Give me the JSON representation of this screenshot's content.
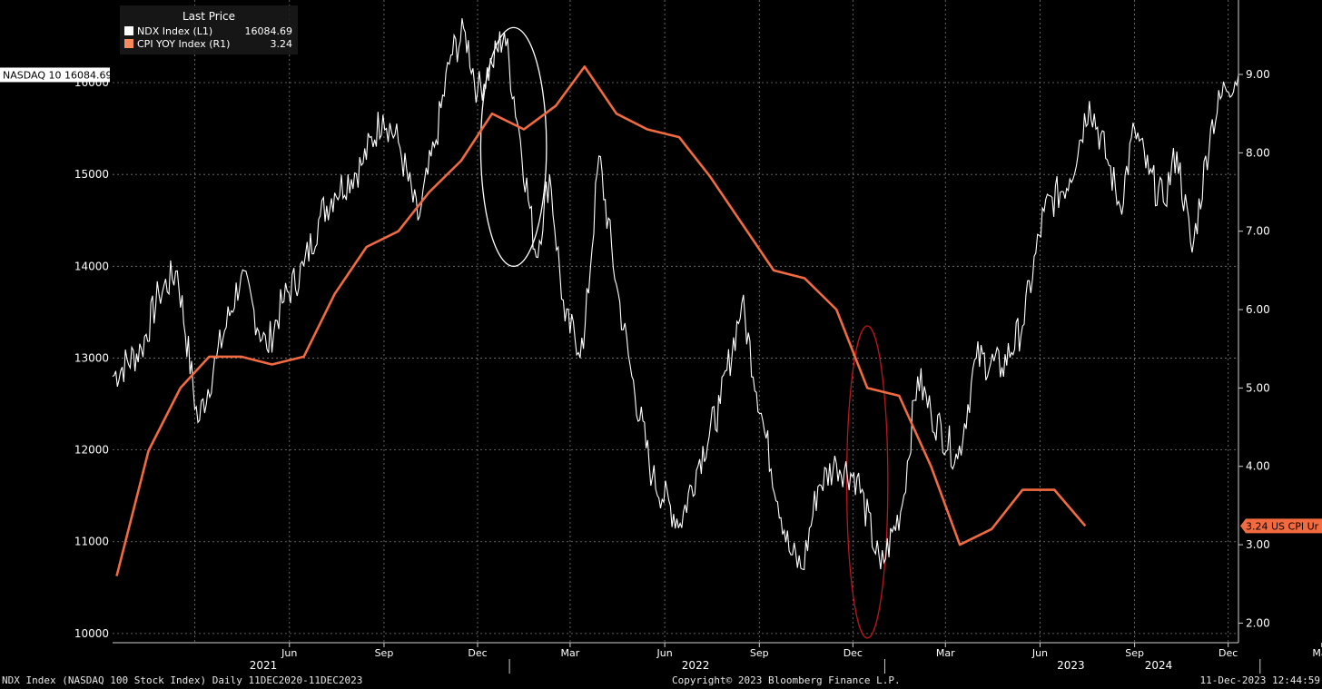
{
  "footer": {
    "left": "NDX Index (NASDAQ 100 Stock Index)  Daily 11DEC2020-11DEC2023",
    "center": "Copyright© 2023 Bloomberg Finance L.P.",
    "right": "11-Dec-2023 12:44:59"
  },
  "legend": {
    "title": "Last Price",
    "items": [
      {
        "label": "NDX Index  (L1)",
        "value": "16084.69",
        "color": "#ffffff"
      },
      {
        "label": "CPI YOY Index  (R1)",
        "value": "3.24",
        "color": "#ff8a5b"
      }
    ]
  },
  "tags": {
    "left": "NASDAQ 10 16084.69",
    "right": "3.24 US CPI Ur"
  },
  "colors": {
    "background": "#000000",
    "ndx": "#ffffff",
    "cpi": "#f26a3f",
    "grid": "#7a7a7a",
    "annotation_white": "#ffffff",
    "annotation_red": "#c0141c"
  },
  "chart_data": {
    "type": "line",
    "x_range": [
      "2020-12-11",
      "2023-12-11"
    ],
    "x_tick_labels": [
      "Jun",
      "Sep",
      "Dec",
      "Mar",
      "Jun",
      "Sep",
      "Dec",
      "Mar",
      "Jun",
      "Sep",
      "Dec",
      "Mar"
    ],
    "year_labels": [
      "2021",
      "2022",
      "2023",
      "2024"
    ],
    "y_left": {
      "ticks": [
        "10000",
        "11000",
        "12000",
        "13000",
        "14000",
        "15000",
        "16000"
      ],
      "range": [
        9900,
        16900
      ]
    },
    "y_right": {
      "ticks": [
        "2.00",
        "3.00",
        "4.00",
        "5.00",
        "6.00",
        "7.00",
        "8.00",
        "9.00"
      ],
      "range": [
        1.75,
        9.95
      ]
    },
    "grid": true,
    "legend_position": "top-left",
    "series": [
      {
        "name": "NDX Index",
        "axis": "left",
        "points": [
          [
            "2020-12-11",
            12800
          ],
          [
            "2021-01-08",
            13100
          ],
          [
            "2021-01-25",
            13700
          ],
          [
            "2021-02-12",
            13950
          ],
          [
            "2021-03-04",
            12300
          ],
          [
            "2021-03-22",
            13000
          ],
          [
            "2021-04-15",
            13900
          ],
          [
            "2021-05-10",
            13100
          ],
          [
            "2021-05-25",
            13600
          ],
          [
            "2021-06-15",
            14000
          ],
          [
            "2021-07-01",
            14550
          ],
          [
            "2021-07-15",
            14800
          ],
          [
            "2021-08-10",
            15100
          ],
          [
            "2021-08-31",
            15650
          ],
          [
            "2021-09-15",
            15350
          ],
          [
            "2021-10-04",
            14500
          ],
          [
            "2021-10-20",
            15300
          ],
          [
            "2021-11-05",
            16300
          ],
          [
            "2021-11-19",
            16550
          ],
          [
            "2021-12-01",
            15900
          ],
          [
            "2021-12-15",
            16200
          ],
          [
            "2021-12-27",
            16550
          ],
          [
            "2022-01-10",
            15500
          ],
          [
            "2022-01-27",
            14100
          ],
          [
            "2022-02-09",
            15000
          ],
          [
            "2022-02-24",
            13400
          ],
          [
            "2022-03-14",
            13100
          ],
          [
            "2022-03-29",
            15200
          ],
          [
            "2022-04-15",
            13800
          ],
          [
            "2022-04-30",
            12800
          ],
          [
            "2022-05-20",
            11700
          ],
          [
            "2022-06-16",
            11200
          ],
          [
            "2022-07-05",
            11900
          ],
          [
            "2022-07-25",
            12500
          ],
          [
            "2022-08-15",
            13600
          ],
          [
            "2022-09-06",
            12200
          ],
          [
            "2022-09-30",
            10900
          ],
          [
            "2022-10-13",
            10700
          ],
          [
            "2022-10-28",
            11600
          ],
          [
            "2022-11-15",
            11850
          ],
          [
            "2022-12-05",
            11700
          ],
          [
            "2022-12-28",
            10700
          ],
          [
            "2023-01-18",
            11400
          ],
          [
            "2023-02-02",
            12800
          ],
          [
            "2023-02-15",
            12400
          ],
          [
            "2023-03-13",
            11900
          ],
          [
            "2023-03-31",
            13000
          ],
          [
            "2023-04-25",
            12900
          ],
          [
            "2023-05-15",
            13350
          ],
          [
            "2023-06-05",
            14600
          ],
          [
            "2023-06-30",
            14950
          ],
          [
            "2023-07-19",
            15800
          ],
          [
            "2023-08-07",
            15100
          ],
          [
            "2023-08-18",
            14650
          ],
          [
            "2023-09-01",
            15500
          ],
          [
            "2023-09-15",
            15000
          ],
          [
            "2023-09-29",
            14700
          ],
          [
            "2023-10-12",
            15250
          ],
          [
            "2023-10-27",
            14150
          ],
          [
            "2023-11-14",
            15500
          ],
          [
            "2023-11-28",
            15950
          ],
          [
            "2023-12-11",
            16084.69
          ]
        ]
      },
      {
        "name": "CPI YOY Index",
        "axis": "right",
        "points": [
          [
            "2020-12-15",
            2.6
          ],
          [
            "2021-01-15",
            4.2
          ],
          [
            "2021-02-15",
            5.0
          ],
          [
            "2021-03-15",
            5.4
          ],
          [
            "2021-04-15",
            5.4
          ],
          [
            "2021-05-15",
            5.3
          ],
          [
            "2021-06-15",
            5.4
          ],
          [
            "2021-07-15",
            6.2
          ],
          [
            "2021-08-15",
            6.8
          ],
          [
            "2021-09-15",
            7.0
          ],
          [
            "2021-10-15",
            7.5
          ],
          [
            "2021-11-15",
            7.9
          ],
          [
            "2021-12-15",
            8.5
          ],
          [
            "2022-01-15",
            8.3
          ],
          [
            "2022-02-15",
            8.6
          ],
          [
            "2022-03-15",
            9.1
          ],
          [
            "2022-04-15",
            8.5
          ],
          [
            "2022-05-15",
            8.3
          ],
          [
            "2022-06-15",
            8.2
          ],
          [
            "2022-07-15",
            7.7
          ],
          [
            "2022-08-15",
            7.1
          ],
          [
            "2022-09-15",
            6.5
          ],
          [
            "2022-10-15",
            6.4
          ],
          [
            "2022-11-15",
            6.0
          ],
          [
            "2022-12-15",
            5.0
          ],
          [
            "2023-01-15",
            4.9
          ],
          [
            "2023-02-15",
            4.0
          ],
          [
            "2023-03-15",
            3.0
          ],
          [
            "2023-04-15",
            3.2
          ],
          [
            "2023-05-15",
            3.7
          ],
          [
            "2023-06-15",
            3.7
          ],
          [
            "2023-07-15",
            3.24
          ]
        ]
      }
    ],
    "annotations": [
      {
        "shape": "ellipse",
        "color": "white",
        "center": [
          "2022-01-05",
          15300
        ],
        "rx_days": 32,
        "ry": 1300
      },
      {
        "shape": "ellipse",
        "color": "red",
        "center": [
          "2022-12-15",
          11650
        ],
        "rx_days": 20,
        "ry": 1700
      }
    ]
  }
}
